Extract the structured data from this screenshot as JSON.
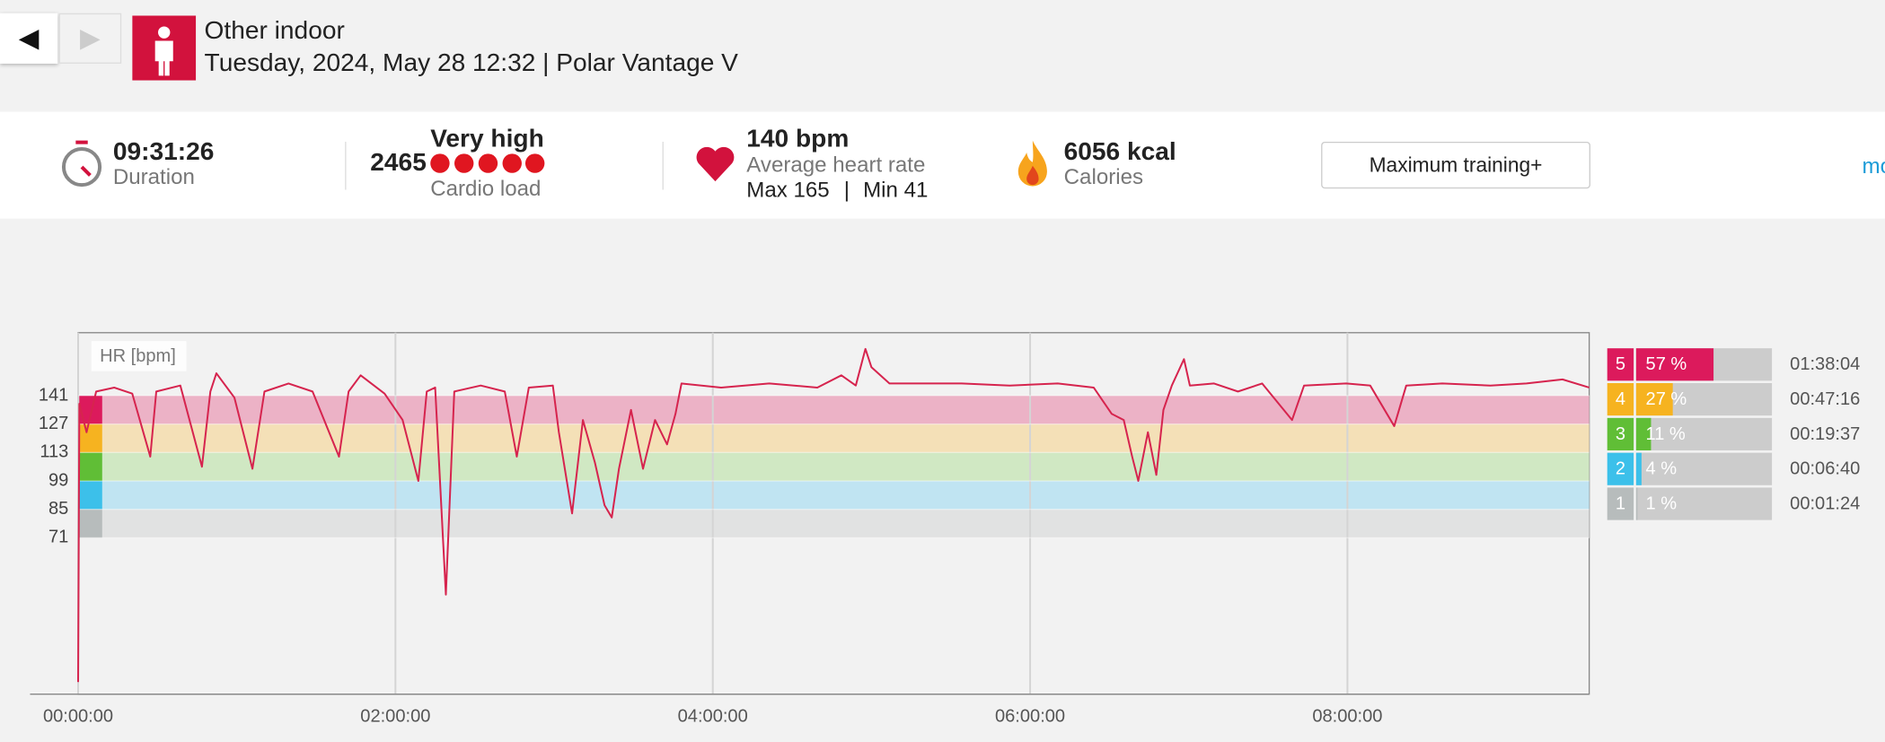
{
  "nav": {
    "back": "◀",
    "forward": "▶"
  },
  "header": {
    "sport": "Other indoor",
    "details": "Tuesday, 2024, May 28 12:32 | Polar Vantage V"
  },
  "summary": {
    "duration": {
      "value": "09:31:26",
      "label": "Duration"
    },
    "cardio_load": {
      "value": "2465",
      "level": "Very high",
      "label": "Cardio load"
    },
    "heart_rate": {
      "value": "140 bpm",
      "label": "Average heart rate",
      "max": "Max 165",
      "separator": "|",
      "min": "Min 41"
    },
    "calories": {
      "value": "6056 kcal",
      "label": "Calories"
    },
    "training_benefit": "Maximum training+",
    "more": "mo"
  },
  "chart_data": {
    "type": "line",
    "y_label": "HR [bpm]",
    "color": "#d6244e",
    "xlim": [
      0,
      34286
    ],
    "xticks": [
      {
        "value": 0,
        "label": "00:00:00"
      },
      {
        "value": 7200,
        "label": "02:00:00"
      },
      {
        "value": 14400,
        "label": "04:00:00"
      },
      {
        "value": 21600,
        "label": "06:00:00"
      },
      {
        "value": 28800,
        "label": "08:00:00"
      }
    ],
    "ylim": [
      -6,
      172
    ],
    "yticks": [
      71,
      85,
      99,
      113,
      127,
      141
    ],
    "x": [
      0,
      27,
      191,
      409,
      818,
      1227,
      1636,
      1773,
      2318,
      2809,
      3000,
      3136,
      3545,
      3954,
      4227,
      4772,
      5318,
      5918,
      6136,
      6409,
      6954,
      7363,
      7718,
      7909,
      8100,
      8345,
      8536,
      9136,
      9681,
      9954,
      10227,
      10772,
      10908,
      11208,
      11454,
      11727,
      11945,
      12109,
      12272,
      12545,
      12818,
      13090,
      13363,
      13554,
      13690,
      14590,
      15681,
      16772,
      17317,
      17645,
      17863,
      17999,
      18408,
      18954,
      20044,
      21135,
      22226,
      23044,
      23453,
      23726,
      23917,
      24054,
      24272,
      24463,
      24626,
      24817,
      25090,
      25226,
      25772,
      26317,
      26863,
      27544,
      27817,
      28771,
      29317,
      29863,
      30135,
      30954,
      32044,
      32862,
      33680,
      34286
    ],
    "values": [
      0,
      137,
      123,
      143,
      145,
      142,
      111,
      143,
      146,
      106,
      143,
      152,
      140,
      105,
      143,
      147,
      143,
      111,
      143,
      151,
      142,
      129,
      99,
      143,
      145,
      43,
      143,
      146,
      143,
      111,
      145,
      146,
      123,
      83,
      129,
      108,
      87,
      81,
      105,
      134,
      105,
      129,
      117,
      132,
      147,
      145,
      147,
      145,
      151,
      146,
      164,
      155,
      147,
      147,
      147,
      146,
      147,
      145,
      132,
      129,
      111,
      99,
      123,
      102,
      134,
      146,
      159,
      146,
      147,
      143,
      147,
      129,
      146,
      147,
      146,
      126,
      146,
      147,
      146,
      147,
      149,
      145
    ],
    "zones": [
      {
        "label": "5",
        "value": 57,
        "value_label": "57 %",
        "time": "01:38:04",
        "color": "#dc1a5c",
        "band_color": "#ecb2c6"
      },
      {
        "label": "4",
        "value": 27,
        "value_label": "27 %",
        "time": "00:47:16",
        "color": "#f6b320",
        "band_color": "#f4e0b7"
      },
      {
        "label": "3",
        "value": 11,
        "value_label": "11 %",
        "time": "00:19:37",
        "color": "#60be36",
        "band_color": "#d0e8c3"
      },
      {
        "label": "2",
        "value": 4,
        "value_label": "4 %",
        "time": "00:06:40",
        "color": "#3cc0ea",
        "band_color": "#c0e4f2"
      },
      {
        "label": "1",
        "value": 1,
        "value_label": "1 %",
        "time": "00:01:24",
        "color": "#b7bcbc",
        "band_color": "#e1e2e2"
      }
    ]
  }
}
